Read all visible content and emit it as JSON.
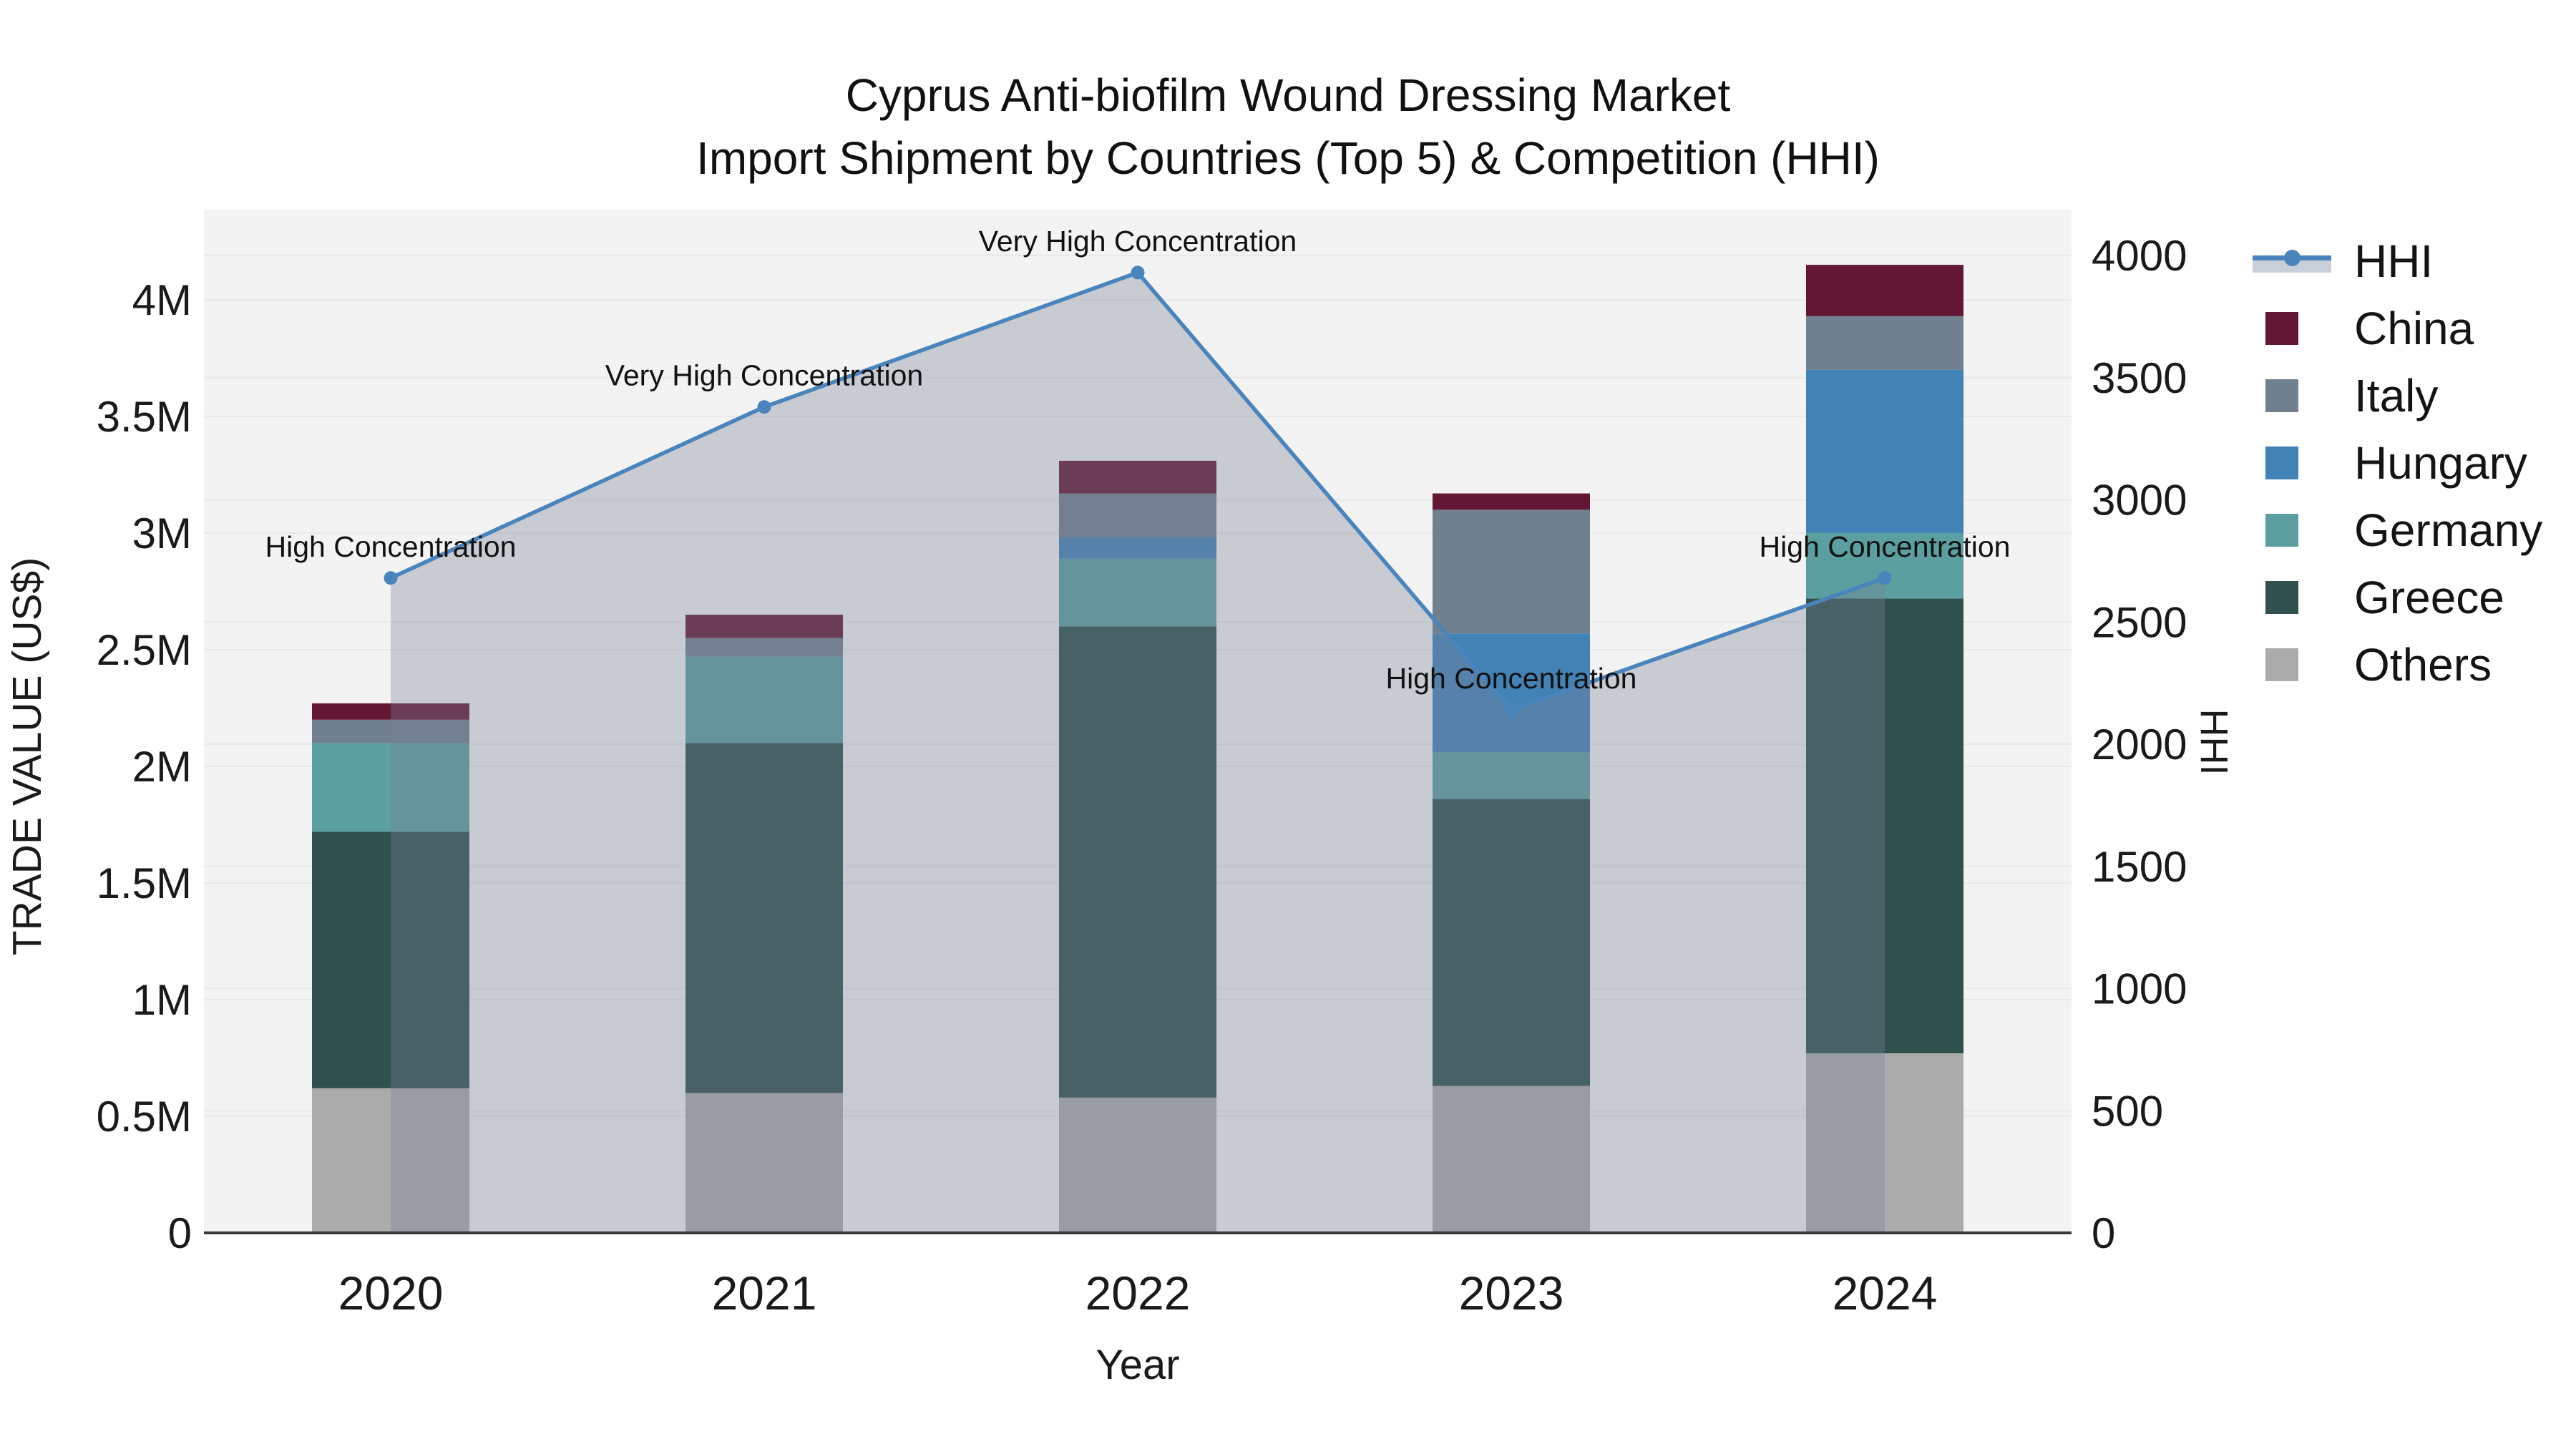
{
  "title": {
    "line1": "Cyprus Anti-biofilm Wound Dressing Market",
    "line2": "Import Shipment by Countries (Top 5) & Competition (HHI)"
  },
  "axes": {
    "left": {
      "title": "TRADE VALUE (US$)",
      "tick_labels": [
        "0",
        "0.5M",
        "1M",
        "1.5M",
        "2M",
        "2.5M",
        "3M",
        "3.5M",
        "4M"
      ],
      "tick_values": [
        0,
        0.5,
        1,
        1.5,
        2,
        2.5,
        3,
        3.5,
        4
      ],
      "unit": "millions of US$"
    },
    "right": {
      "title": "HHI",
      "tick_labels": [
        "0",
        "500",
        "1000",
        "1500",
        "2000",
        "2500",
        "3000",
        "3500",
        "4000"
      ],
      "tick_values": [
        0,
        500,
        1000,
        1500,
        2000,
        2500,
        3000,
        3500,
        4000
      ]
    },
    "x": {
      "title": "Year"
    }
  },
  "legend": {
    "items": [
      {
        "label": "HHI",
        "type": "line",
        "color": "#4A84BC",
        "band_color": "#C9CFD8"
      },
      {
        "label": "China",
        "type": "square",
        "color": "#641735"
      },
      {
        "label": "Italy",
        "type": "square",
        "color": "#70808F"
      },
      {
        "label": "Hungary",
        "type": "square",
        "color": "#4282B5"
      },
      {
        "label": "Germany",
        "type": "square",
        "color": "#5C9FA0"
      },
      {
        "label": "Greece",
        "type": "square",
        "color": "#2F504D"
      },
      {
        "label": "Others",
        "type": "square",
        "color": "#ABABAB"
      }
    ]
  },
  "colors": {
    "plot_background": "#F3F3F3",
    "gridline": "#E7E9EA",
    "axis_line": "#3A3A3A",
    "hhi_line": "#4A84BC",
    "hhi_area_fill": "rgba(120,130,150,0.35)",
    "annotation_text": "#111111",
    "tick_text": "#1a1a1a"
  },
  "chart_data": {
    "type": "bar",
    "stacked": true,
    "categories": [
      "2020",
      "2021",
      "2022",
      "2023",
      "2024"
    ],
    "value_unit": "M US$",
    "series": [
      {
        "name": "Others",
        "color": "#ABABAB",
        "values": [
          0.62,
          0.6,
          0.58,
          0.63,
          0.77
        ]
      },
      {
        "name": "Greece",
        "color": "#2F504D",
        "values": [
          1.1,
          1.5,
          2.02,
          1.23,
          1.95
        ]
      },
      {
        "name": "Germany",
        "color": "#5C9FA0",
        "values": [
          0.38,
          0.37,
          0.29,
          0.2,
          0.28
        ]
      },
      {
        "name": "Hungary",
        "color": "#4282B5",
        "values": [
          0.0,
          0.0,
          0.09,
          0.51,
          0.7
        ]
      },
      {
        "name": "Italy",
        "color": "#70808F",
        "values": [
          0.1,
          0.08,
          0.19,
          0.53,
          0.23
        ]
      },
      {
        "name": "China",
        "color": "#641735",
        "values": [
          0.07,
          0.1,
          0.14,
          0.07,
          0.22
        ]
      }
    ],
    "bar_totals": [
      2.27,
      2.65,
      3.31,
      3.17,
      4.15
    ],
    "line": {
      "name": "HHI",
      "axis": "right",
      "color": "#4A84BC",
      "fill_to_zero": true,
      "values": [
        2680,
        3380,
        3930,
        2140,
        2680
      ]
    },
    "annotations": [
      {
        "category": "2020",
        "label": "High Concentration"
      },
      {
        "category": "2021",
        "label": "Very High Concentration"
      },
      {
        "category": "2022",
        "label": "Very High Concentration"
      },
      {
        "category": "2023",
        "label": "High Concentration"
      },
      {
        "category": "2024",
        "label": "High Concentration"
      }
    ],
    "ylim_left": [
      0,
      4.38
    ],
    "ylim_right": [
      0,
      4186
    ],
    "legend_position": "right",
    "grid": true
  }
}
